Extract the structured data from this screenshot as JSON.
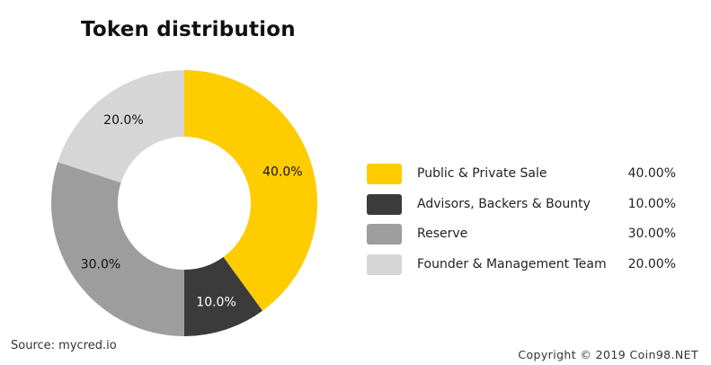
{
  "chart_data": {
    "type": "pie",
    "title": "Token distribution",
    "categories": [
      "Public & Private Sale",
      "Advisors, Backers & Bounty",
      "Reserve",
      "Founder & Management Team"
    ],
    "values": [
      40.0,
      10.0,
      30.0,
      20.0
    ],
    "slice_labels": [
      "40.0%",
      "10.0%",
      "30.0%",
      "20.0%"
    ],
    "legend_values": [
      "40.00%",
      "10.00%",
      "30.00%",
      "20.00%"
    ],
    "colors": [
      "#ffcc00",
      "#3b3b3b",
      "#9d9d9d",
      "#d6d6d6"
    ],
    "label_colors": [
      "#111111",
      "#ffffff",
      "#111111",
      "#111111"
    ],
    "legend_position": "right",
    "donut": true
  },
  "footer": {
    "source": "Source: mycred.io",
    "copyright": "Copyright © 2019 Coin98.NET"
  }
}
